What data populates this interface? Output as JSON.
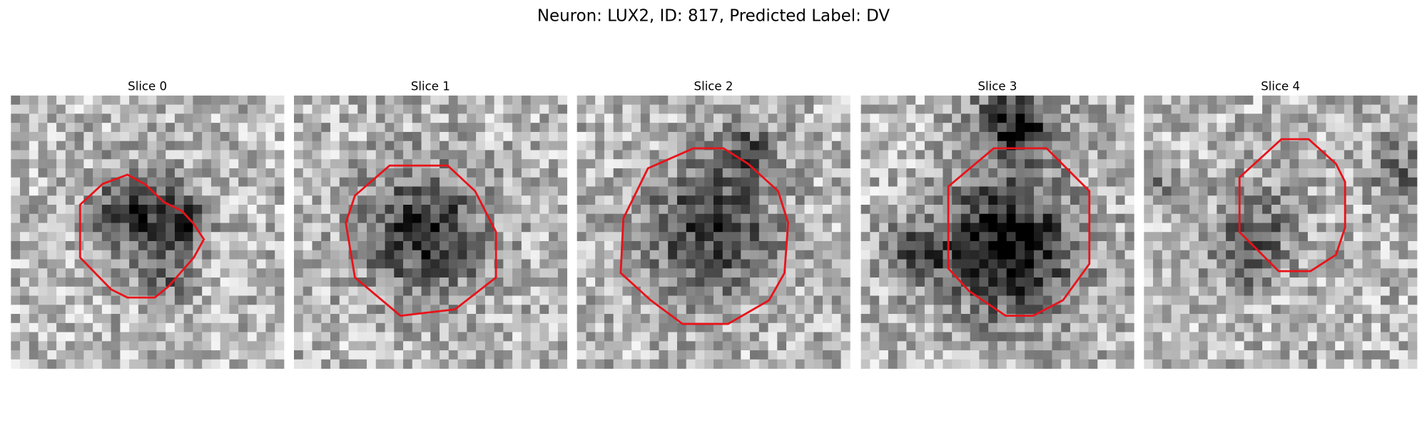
{
  "figure": {
    "title": "Neuron: LUX2, ID: 817, Predicted Label: DV",
    "panels": [
      {
        "title": "Slice 0"
      },
      {
        "title": "Slice 1"
      },
      {
        "title": "Slice 2"
      },
      {
        "title": "Slice 3"
      },
      {
        "title": "Slice 4"
      }
    ]
  }
}
